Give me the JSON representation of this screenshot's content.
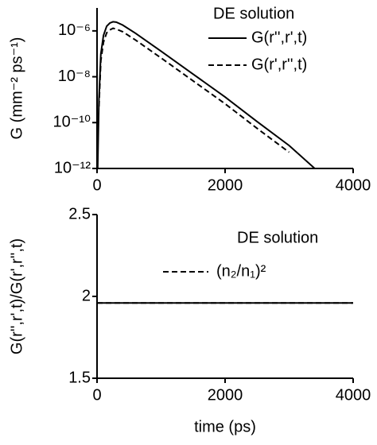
{
  "chart_data": [
    {
      "type": "line",
      "ylabel": "G (mm⁻² ps⁻¹)",
      "log_y": true,
      "legend_title": "DE solution",
      "x": [
        10,
        30,
        60,
        100,
        150,
        200,
        250,
        300,
        400,
        600,
        1000,
        1500,
        2000,
        2500,
        3000,
        3400
      ],
      "series": [
        {
          "name": "G(r'',r',t)",
          "color": "#000000",
          "style": "solid",
          "values": [
            1e-12,
            1e-09,
            1e-07,
            6.3e-07,
            1.6e-06,
            2.2e-06,
            2.5e-06,
            2.4e-06,
            1.8e-06,
            7.9e-07,
            1.3e-07,
            1.3e-08,
            1.3e-09,
            1.1e-10,
            1e-11,
            1e-12
          ]
        },
        {
          "name": "G(r',r'',t)",
          "color": "#000000",
          "style": "dashed",
          "values": [
            null,
            5.1e-10,
            5.1e-08,
            3.2e-07,
            8.2e-07,
            1.1e-06,
            1.3e-06,
            1.2e-06,
            9.2e-07,
            4e-07,
            6.6e-08,
            6.6e-09,
            6.6e-10,
            5.6e-11,
            5.1e-12,
            null
          ]
        }
      ],
      "xlim": [
        0,
        4000
      ],
      "xticks": [
        0,
        2000,
        4000
      ],
      "ylim": [
        1e-12,
        1e-05
      ],
      "yticks": [
        {
          "value": 1e-12,
          "label": "10⁻¹²"
        },
        {
          "value": 1e-10,
          "label": "10⁻¹⁰"
        },
        {
          "value": 1e-08,
          "label": "10⁻⁸"
        },
        {
          "value": 1e-06,
          "label": "10⁻⁶"
        }
      ]
    },
    {
      "type": "line",
      "ylabel": "G(r'',r',t)/G(r',r'',t)",
      "xlabel": "time (ps)",
      "log_y": false,
      "legend_title": "DE solution",
      "x": [
        0,
        4000
      ],
      "series": [
        {
          "name": null,
          "color": "#000000",
          "style": "solid",
          "values": [
            1.96,
            1.96
          ]
        },
        {
          "name": "(n₂/n₁)²",
          "color": "#000000",
          "style": "dashed",
          "values": [
            1.96,
            1.96
          ]
        }
      ],
      "xlim": [
        0,
        4000
      ],
      "xticks": [
        0,
        2000,
        4000
      ],
      "ylim": [
        1.5,
        2.5
      ],
      "yticks": [
        1.5,
        2.0,
        2.5
      ]
    }
  ]
}
